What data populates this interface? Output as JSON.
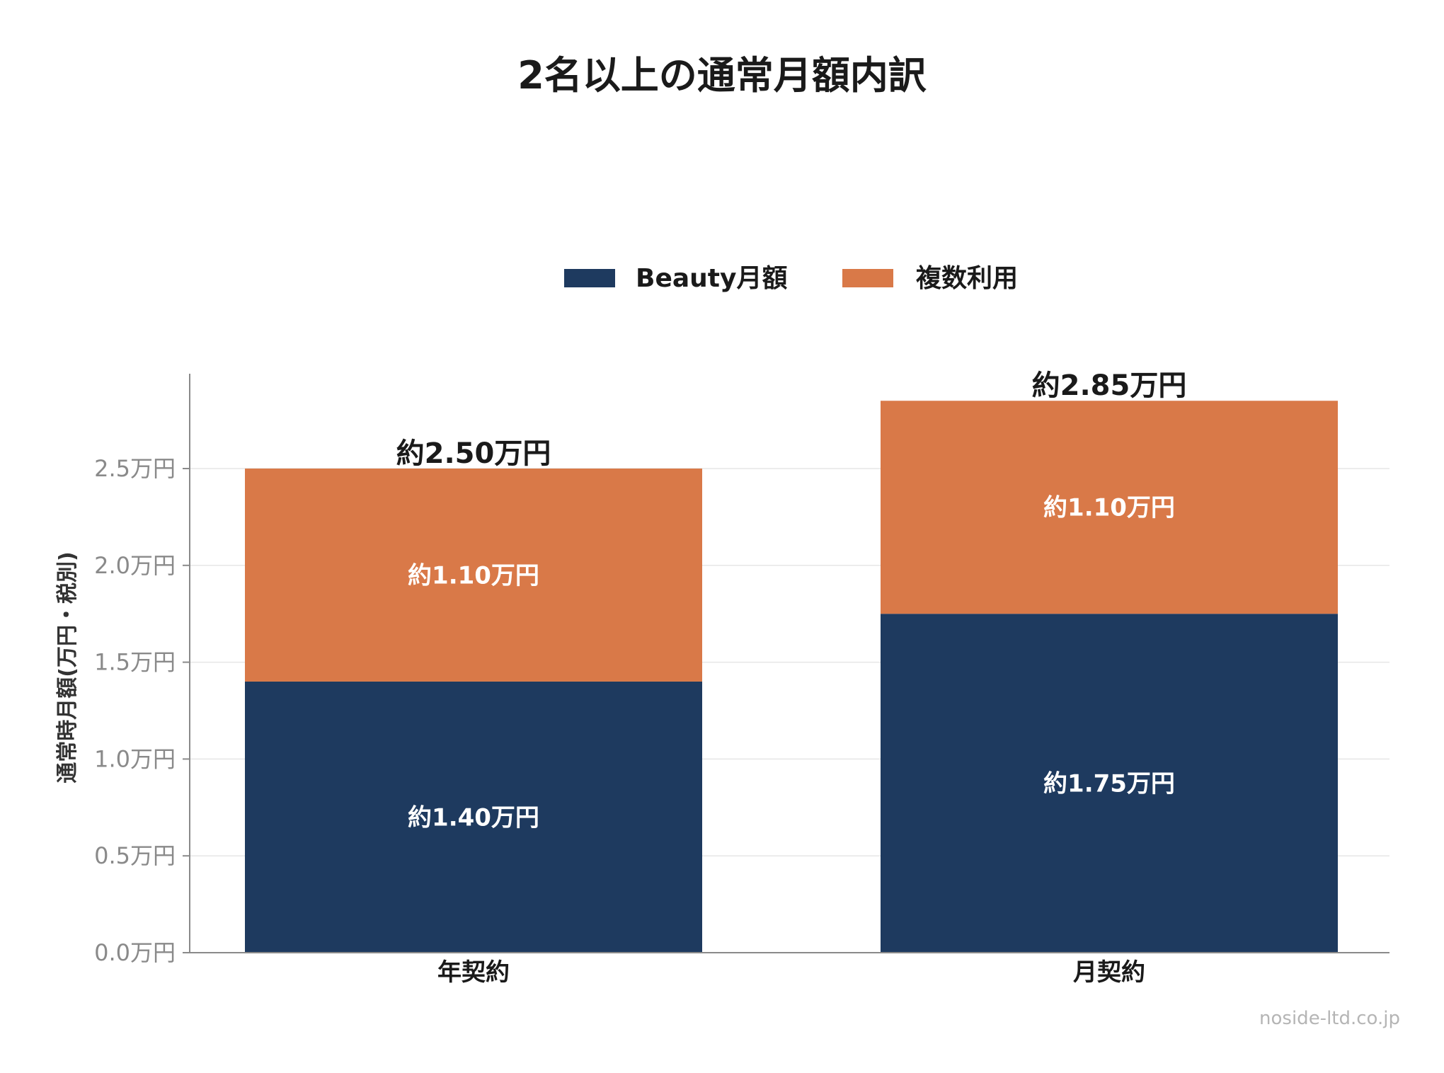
{
  "chart_data": {
    "type": "bar",
    "stacked": true,
    "title": "2名以上の通常月額内訳",
    "ylabel": "通常時月額(万円・税別)",
    "xlabel": "",
    "categories": [
      "年契約",
      "月契約"
    ],
    "series": [
      {
        "name": "Beauty月額",
        "values": [
          1.4,
          1.75
        ],
        "color": "#1e3a5f",
        "labels": [
          "約1.40万円",
          "約1.75万円"
        ]
      },
      {
        "name": "複数利用",
        "values": [
          1.1,
          1.1
        ],
        "color": "#d97948",
        "labels": [
          "約1.10万円",
          "約1.10万円"
        ]
      }
    ],
    "totals": [
      2.5,
      2.85
    ],
    "total_labels": [
      "約2.50万円",
      "約2.85万円"
    ],
    "ylim": [
      0,
      2.85
    ],
    "yticks": [
      0.0,
      0.5,
      1.0,
      1.5,
      2.0,
      2.5
    ],
    "ytick_labels": [
      "0.0万円",
      "0.5万円",
      "1.0万円",
      "1.5万円",
      "2.0万円",
      "2.5万円"
    ],
    "grid": true,
    "legend_position": "top-center"
  },
  "watermark": "noside-ltd.co.jp"
}
